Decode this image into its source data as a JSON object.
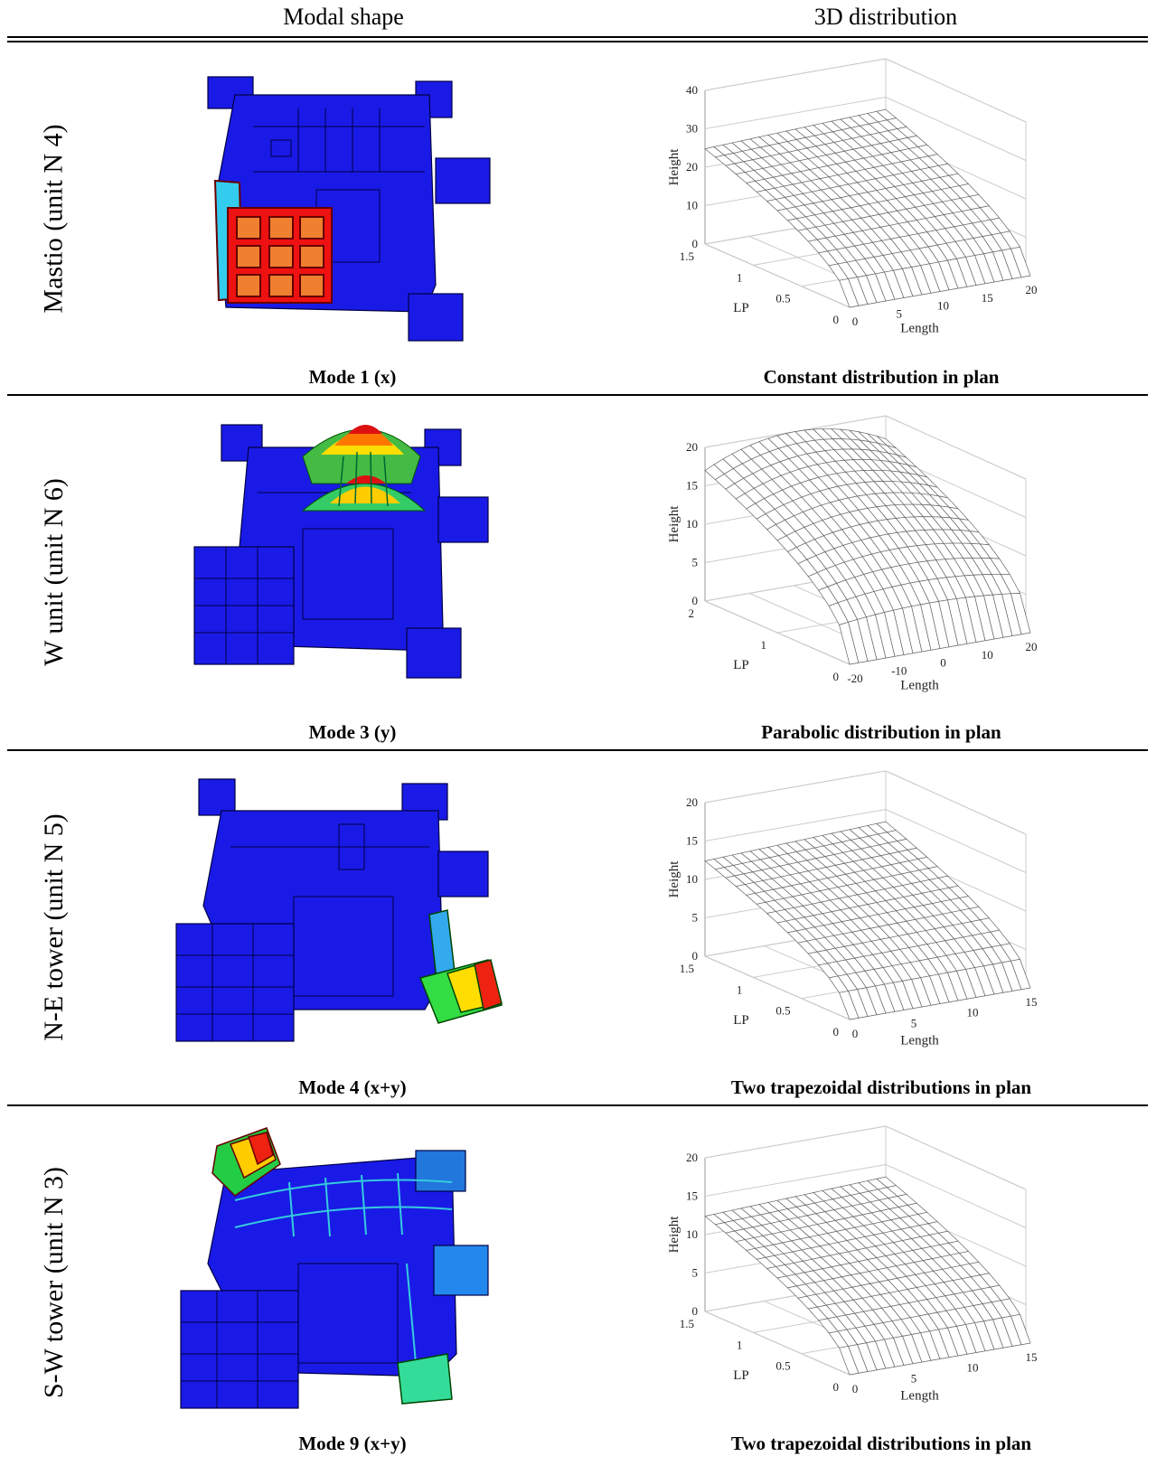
{
  "headers": {
    "col1": "Modal shape",
    "col2": "3D distribution"
  },
  "rows": [
    {
      "label": "Mastio (unit N 4)",
      "mode": "Mode 1 (x)",
      "dist": "Constant distribution in plan",
      "chart": {
        "zticks": [
          "0",
          "10",
          "20",
          "30",
          "40"
        ],
        "lpticks": [
          "1.5",
          "1",
          "0.5",
          "0"
        ],
        "lenticks": [
          "0",
          "5",
          "10",
          "15",
          "20"
        ],
        "zlabel": "Height",
        "lplabel": "LP",
        "lenlabel": "Length"
      }
    },
    {
      "label": "W unit (unit N 6)",
      "mode": "Mode 3 (y)",
      "dist": "Parabolic distribution in plan",
      "chart": {
        "zticks": [
          "0",
          "5",
          "10",
          "15",
          "20"
        ],
        "lpticks": [
          "2",
          "1",
          "0"
        ],
        "lenticks": [
          "-20",
          "-10",
          "0",
          "10",
          "20"
        ],
        "zlabel": "Height",
        "lplabel": "LP",
        "lenlabel": "Length"
      }
    },
    {
      "label": "N-E tower (unit N 5)",
      "mode": "Mode 4 (x+y)",
      "dist": "Two trapezoidal distributions in plan",
      "chart": {
        "zticks": [
          "0",
          "5",
          "10",
          "15",
          "20"
        ],
        "lpticks": [
          "1.5",
          "1",
          "0.5",
          "0"
        ],
        "lenticks": [
          "0",
          "5",
          "10",
          "15"
        ],
        "zlabel": "Height",
        "lplabel": "LP",
        "lenlabel": "Length"
      }
    },
    {
      "label": "S-W tower (unit N 3)",
      "mode": "Mode 9 (x+y)",
      "dist": "Two trapezoidal distributions in plan",
      "chart": {
        "zticks": [
          "0",
          "5",
          "10",
          "15",
          "20"
        ],
        "lpticks": [
          "1.5",
          "1",
          "0.5",
          "0"
        ],
        "lenticks": [
          "0",
          "5",
          "10",
          "15"
        ],
        "zlabel": "Height",
        "lplabel": "LP",
        "lenlabel": "Length"
      }
    }
  ]
}
